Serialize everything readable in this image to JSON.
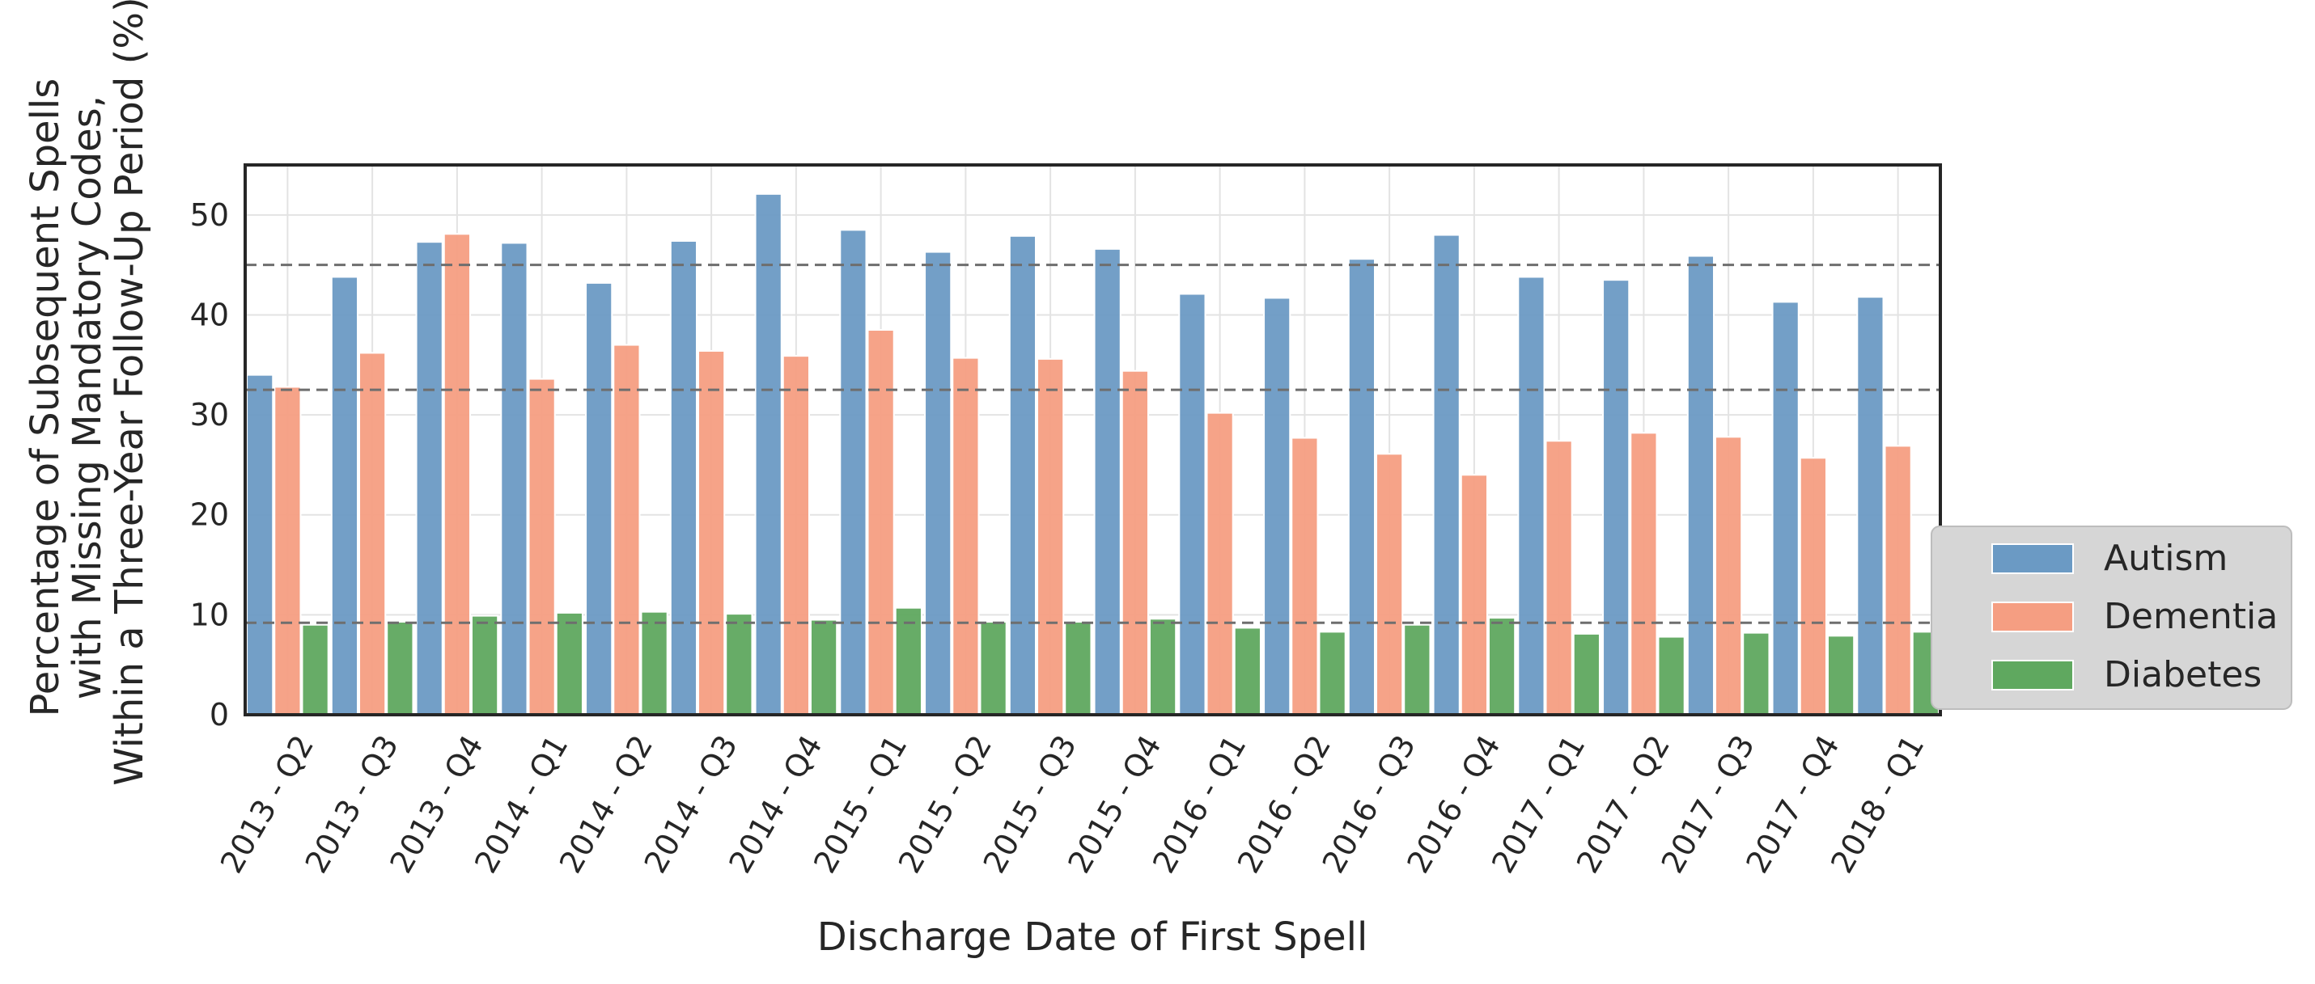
{
  "chart_data": {
    "type": "bar",
    "title": "",
    "xlabel": "Discharge Date of First Spell",
    "ylabel": [
      "Percentage of Subsequent Spells",
      "with Missing Mandatory Codes,",
      "Within a Three-Year Follow-Up Period (%)"
    ],
    "ylim": [
      0,
      55
    ],
    "yticks": [
      0,
      10,
      20,
      30,
      40,
      50
    ],
    "grid": true,
    "legend_position": "right",
    "categories": [
      "2013 - Q2",
      "2013 - Q3",
      "2013 - Q4",
      "2014 - Q1",
      "2014 - Q2",
      "2014 - Q3",
      "2014 - Q4",
      "2015 - Q1",
      "2015 - Q2",
      "2015 - Q3",
      "2015 - Q4",
      "2016 - Q1",
      "2016 - Q2",
      "2016 - Q3",
      "2016 - Q4",
      "2017 - Q1",
      "2017 - Q2",
      "2017 - Q3",
      "2017 - Q4",
      "2018 - Q1"
    ],
    "series": [
      {
        "name": "Autism",
        "color": "#6b9ac4",
        "values": [
          34.0,
          43.8,
          47.3,
          47.2,
          43.2,
          47.4,
          52.1,
          48.5,
          46.3,
          47.9,
          46.6,
          42.1,
          41.7,
          45.6,
          48.0,
          43.8,
          43.5,
          45.9,
          41.3,
          41.8
        ]
      },
      {
        "name": "Dementia",
        "color": "#f59e82",
        "values": [
          32.8,
          36.2,
          48.1,
          33.6,
          37.0,
          36.4,
          35.9,
          38.5,
          35.7,
          35.6,
          34.4,
          30.2,
          27.7,
          26.1,
          24.0,
          27.4,
          28.2,
          27.8,
          25.7,
          26.9
        ]
      },
      {
        "name": "Diabetes",
        "color": "#5fa85f",
        "values": [
          9.0,
          9.3,
          9.9,
          10.2,
          10.3,
          10.1,
          9.5,
          10.7,
          9.3,
          9.3,
          9.6,
          8.7,
          8.3,
          9.0,
          9.7,
          8.1,
          7.8,
          8.2,
          7.9,
          8.3
        ]
      }
    ],
    "reference_lines": [
      45.0,
      32.5,
      9.2
    ]
  }
}
